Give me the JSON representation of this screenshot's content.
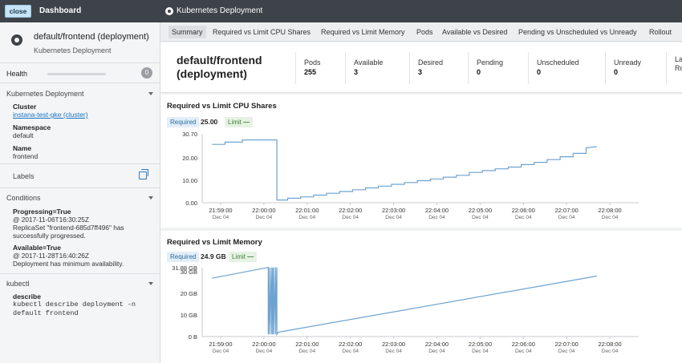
{
  "topbar": {
    "close_label": "close",
    "dashboard_label": "Dashboard",
    "page_label": "Kubernetes Deployment"
  },
  "sidebar": {
    "title": "default/frontend (deployment)",
    "subtitle": "Kubernetes Deployment",
    "health_label": "Health",
    "health_count": "0",
    "k8s_section": "Kubernetes Deployment",
    "cluster_label": "Cluster",
    "cluster_value": "instana-test-gke (cluster)",
    "namespace_label": "Namespace",
    "namespace_value": "default",
    "name_label": "Name",
    "name_value": "frontend",
    "labels_section": "Labels",
    "conditions_section": "Conditions",
    "conditions": [
      {
        "title": "Progressing=True",
        "text": "@ 2017-11-06T16:30:25Z\nReplicaSet \"frontend-685d7ff496\" has\nsuccessfully progressed."
      },
      {
        "title": "Available=True",
        "text": "@ 2017-11-28T16:40:26Z\nDeployment has minimum availability."
      }
    ],
    "kubectl_section": "kubectl",
    "describe_label": "describe",
    "describe_cmd": "kubectl describe deployment -n\ndefault frontend"
  },
  "tabs": [
    "Summary",
    "Required vs Limit CPU Shares",
    "Required vs Limit Memory",
    "Pods",
    "Available vs Desired",
    "Pending vs Unscheduled vs Unready",
    "Rollout"
  ],
  "summary": {
    "title": "default/frontend (deployment)",
    "metrics": [
      {
        "label": "Pods",
        "value": "255"
      },
      {
        "label": "Available",
        "value": "3"
      },
      {
        "label": "Desired",
        "value": "3"
      },
      {
        "label": "Pending",
        "value": "0"
      },
      {
        "label": "Unscheduled",
        "value": "0"
      },
      {
        "label": "Unready",
        "value": "0"
      },
      {
        "label": "La",
        "value": "Ro"
      }
    ]
  },
  "colors": {
    "series": "#6ea3d0",
    "accent": "#2a79c0"
  },
  "chart_data": [
    {
      "type": "line",
      "title": "Required vs Limit CPU Shares",
      "legend": {
        "required_label": "Required",
        "required_value": "25.00",
        "limit_label": "Limit",
        "limit_value": "—"
      },
      "y_ticks": [
        "30.70",
        "20.00",
        "10.00",
        "0.00"
      ],
      "ylim": [
        0,
        30.7
      ],
      "x_ticks": [
        {
          "time": "21:59:00",
          "date": "Dec 04"
        },
        {
          "time": "22:00:00",
          "date": "Dec 04"
        },
        {
          "time": "22:01:00",
          "date": "Dec 04"
        },
        {
          "time": "22:02:00",
          "date": "Dec 04"
        },
        {
          "time": "22:03:00",
          "date": "Dec 04"
        },
        {
          "time": "22:04:00",
          "date": "Dec 04"
        },
        {
          "time": "22:05:00",
          "date": "Dec 04"
        },
        {
          "time": "22:06:00",
          "date": "Dec 04"
        },
        {
          "time": "22:07:00",
          "date": "Dec 04"
        },
        {
          "time": "22:08:00",
          "date": "Dec 04"
        }
      ],
      "series": [
        {
          "name": "Required",
          "x": [
            -0.2,
            0.1,
            0.1,
            0.5,
            0.5,
            1.3,
            1.3,
            1.55,
            1.55,
            1.85,
            1.85,
            2.15,
            2.15,
            2.45,
            2.45,
            2.75,
            2.75,
            3.05,
            3.05,
            3.35,
            3.35,
            3.65,
            3.65,
            3.95,
            3.95,
            4.25,
            4.25,
            4.55,
            4.55,
            4.85,
            4.85,
            5.15,
            5.15,
            5.45,
            5.45,
            5.75,
            5.75,
            6.05,
            6.05,
            6.35,
            6.35,
            6.65,
            6.65,
            6.95,
            6.95,
            7.25,
            7.25,
            7.55,
            7.55,
            7.85,
            7.85,
            8.15,
            8.15,
            8.45,
            8.45,
            8.7
          ],
          "y": [
            26,
            26,
            27,
            27,
            28,
            28,
            1.2,
            1.2,
            2,
            2,
            2.6,
            2.6,
            3.4,
            3.4,
            4.2,
            4.2,
            5,
            5,
            5.8,
            5.8,
            6.6,
            6.6,
            7.4,
            7.4,
            8.2,
            8.2,
            9,
            9,
            9.8,
            9.8,
            10.6,
            10.6,
            11.4,
            11.4,
            12.2,
            12.2,
            13.5,
            13.5,
            14.3,
            14.3,
            15.1,
            15.1,
            15.9,
            15.9,
            17,
            17,
            18,
            18,
            19.2,
            19.2,
            20.5,
            20.5,
            22,
            22,
            24.5,
            25
          ]
        }
      ]
    },
    {
      "type": "line",
      "title": "Required vs Limit Memory",
      "legend": {
        "required_label": "Required",
        "required_value": "24.9 GB",
        "limit_label": "Limit",
        "limit_value": "—"
      },
      "y_ticks": [
        "31.88 GB",
        "30 GB",
        "20 GB",
        "10 GB",
        "0 B"
      ],
      "ylim": [
        0,
        31.88
      ],
      "x_ticks": [
        {
          "time": "21:59:00",
          "date": "Dec 04"
        },
        {
          "time": "22:00:00",
          "date": "Dec 04"
        },
        {
          "time": "22:01:00",
          "date": "Dec 04"
        },
        {
          "time": "22:02:00",
          "date": "Dec 04"
        },
        {
          "time": "22:03:00",
          "date": "Dec 04"
        },
        {
          "time": "22:04:00",
          "date": "Dec 04"
        },
        {
          "time": "22:05:00",
          "date": "Dec 04"
        },
        {
          "time": "22:06:00",
          "date": "Dec 04"
        },
        {
          "time": "22:07:00",
          "date": "Dec 04"
        },
        {
          "time": "22:08:00",
          "date": "Dec 04"
        }
      ],
      "series": [
        {
          "name": "Required",
          "x": [
            -0.2,
            1.1,
            1.1,
            1.13,
            1.13,
            1.17,
            1.17,
            1.2,
            1.2,
            1.23,
            1.23,
            1.27,
            1.27,
            1.3,
            1.3,
            1.33,
            1.33,
            8.7
          ],
          "y": [
            27,
            32,
            1,
            32,
            1,
            32,
            1,
            32,
            1,
            32,
            1,
            32,
            1,
            32,
            1,
            2,
            2,
            28
          ]
        }
      ]
    }
  ]
}
